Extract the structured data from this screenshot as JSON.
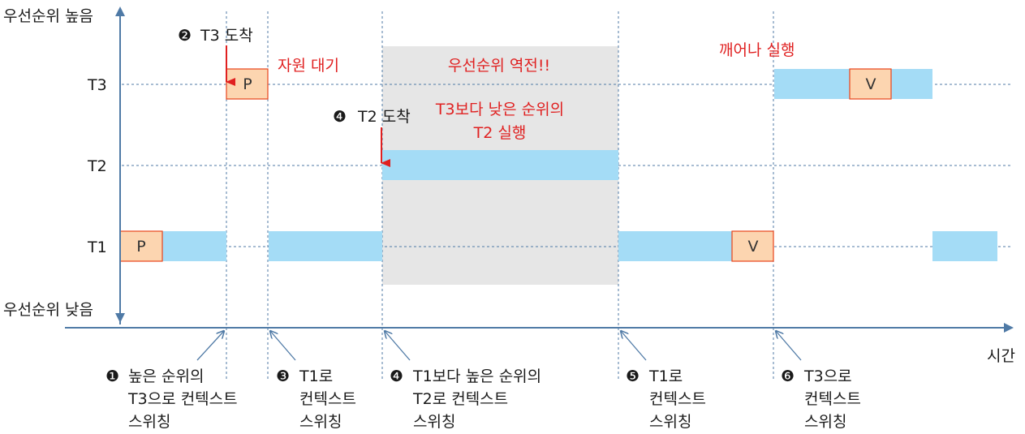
{
  "axis": {
    "y_high_label": "우선순위 높음",
    "y_low_label": "우선순위 낮음",
    "x_label": "시간"
  },
  "rows": {
    "t3": "T3",
    "t2": "T2",
    "t1": "T1"
  },
  "region": {
    "title": "우선순위 역전!!",
    "note_line1": "T3보다 낮은 순위의",
    "note_line2": "T2 실행"
  },
  "annotations": {
    "t3_arrive_num": "❷",
    "t3_arrive_text": "T3 도착",
    "t3_wait": "자원 대기",
    "t2_arrive_num": "❹",
    "t2_arrive_text": "T2 도착",
    "t3_wake": "깨어나 실행"
  },
  "boxes": {
    "t1_p": "P",
    "t3_p": "P",
    "t1_v": "V",
    "t3_v": "V"
  },
  "events": [
    {
      "num": "❶",
      "lines": [
        "높은 순위의",
        "T3으로 컨텍스트",
        "스위칭"
      ]
    },
    {
      "num": "❸",
      "lines": [
        "T1로",
        "컨텍스트",
        "스위칭"
      ]
    },
    {
      "num": "❹",
      "lines": [
        "T1보다 높은 순위의",
        "T2로 컨텍스트",
        "스위칭"
      ]
    },
    {
      "num": "❺",
      "lines": [
        "T1로",
        "컨텍스트",
        "스위칭"
      ]
    },
    {
      "num": "❻",
      "lines": [
        "T3으로",
        "컨텍스트",
        "스위칭"
      ]
    }
  ],
  "colors": {
    "run": "#a4dcf6",
    "resource": "#fcd5b0",
    "resource_border": "#e8441c",
    "axis": "#4f7aa6",
    "region": "#e6e6e6",
    "accent": "#e02020"
  }
}
